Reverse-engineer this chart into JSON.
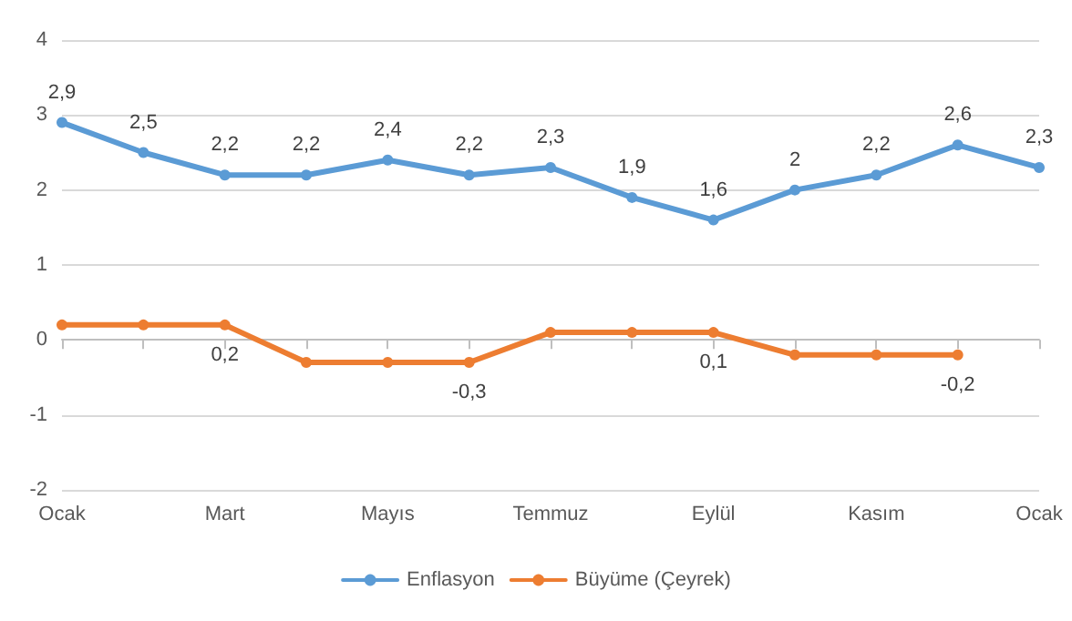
{
  "chart_data": {
    "type": "line",
    "categories": [
      "Ocak",
      null,
      "Mart",
      null,
      "Mayıs",
      null,
      "Temmuz",
      null,
      "Eylül",
      null,
      "Kasım",
      null,
      "Ocak"
    ],
    "series": [
      {
        "name": "Enflasyon",
        "color": "#5b9bd5",
        "values": [
          2.9,
          2.5,
          2.2,
          2.2,
          2.4,
          2.2,
          2.3,
          1.9,
          1.6,
          2,
          2.2,
          2.6,
          2.3
        ],
        "value_labels": [
          "2,9",
          "2,5",
          "2,2",
          "2,2",
          "2,4",
          "2,2",
          "2,3",
          "1,9",
          "1,6",
          "2",
          "2,2",
          "2,6",
          "2,3"
        ]
      },
      {
        "name": "Büyüme (Çeyrek)",
        "color": "#ed7d31",
        "values": [
          0.2,
          0.2,
          0.2,
          -0.3,
          -0.3,
          -0.3,
          0.1,
          0.1,
          0.1,
          -0.2,
          -0.2,
          -0.2,
          null
        ],
        "value_labels": [
          null,
          null,
          "0,2",
          null,
          null,
          "-0,3",
          null,
          null,
          "0,1",
          null,
          null,
          "-0,2",
          null
        ]
      }
    ],
    "ylim": [
      -2,
      4
    ],
    "yticks": [
      -2,
      -1,
      0,
      1,
      2,
      3,
      4
    ],
    "grid": "y",
    "legend": "bottom",
    "marker": "circle",
    "line_style": "solid"
  }
}
